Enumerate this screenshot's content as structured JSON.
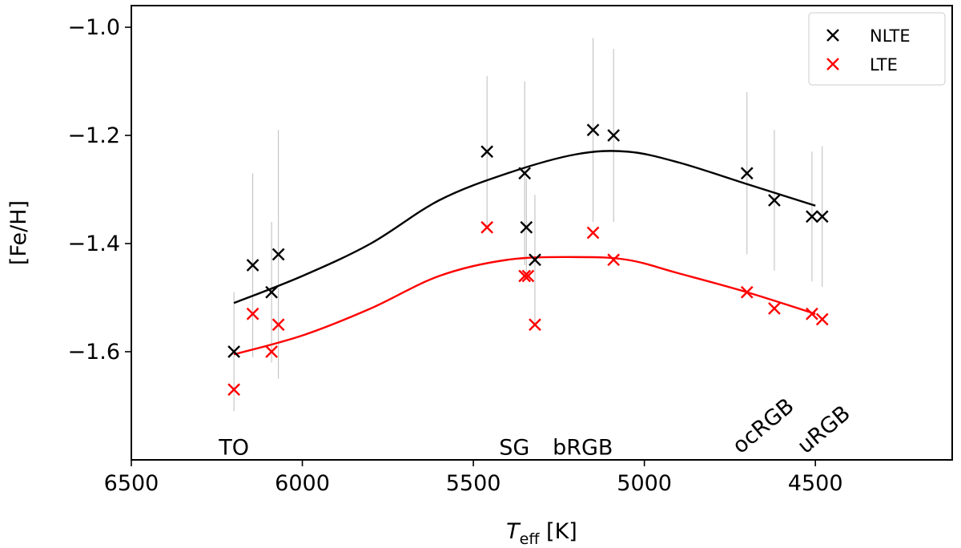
{
  "chart_data": {
    "type": "scatter",
    "xlabel_main": "T",
    "xlabel_sub": "eff",
    "xlabel_unit": " [K]",
    "ylabel": "[Fe/H]",
    "xlim": [
      6500,
      4100
    ],
    "ylim": [
      -1.8,
      -0.96
    ],
    "x_ticks": [
      6500,
      6000,
      5500,
      5000,
      4500
    ],
    "x_tick_labels": [
      "6500",
      "6000",
      "5500",
      "5000",
      "4500"
    ],
    "y_ticks": [
      -1.0,
      -1.2,
      -1.4,
      -1.6
    ],
    "y_tick_labels": [
      "−1.0",
      "−1.2",
      "−1.4",
      "−1.6"
    ],
    "legend_position": "top-right",
    "colors": {
      "nlte": "#000000",
      "lte": "#ff0000",
      "errorbar": "#bbbbbb",
      "frame": "#000000"
    },
    "series": [
      {
        "name": "NLTE",
        "key": "nlte",
        "marker": "x",
        "points": [
          {
            "x": 6200,
            "y": -1.6,
            "err": 0.11
          },
          {
            "x": 6145,
            "y": -1.44,
            "err": 0.17
          },
          {
            "x": 6090,
            "y": -1.49,
            "err": 0.13
          },
          {
            "x": 6070,
            "y": -1.42,
            "err": 0.23
          },
          {
            "x": 5460,
            "y": -1.23,
            "err": 0.14
          },
          {
            "x": 5350,
            "y": -1.27,
            "err": 0.17
          },
          {
            "x": 5345,
            "y": -1.37,
            "err": 0.09
          },
          {
            "x": 5320,
            "y": -1.43,
            "err": 0.12
          },
          {
            "x": 5150,
            "y": -1.19,
            "err": 0.17
          },
          {
            "x": 5090,
            "y": -1.2,
            "err": 0.16
          },
          {
            "x": 4700,
            "y": -1.27,
            "err": 0.15
          },
          {
            "x": 4620,
            "y": -1.32,
            "err": 0.13
          },
          {
            "x": 4510,
            "y": -1.35,
            "err": 0.12
          },
          {
            "x": 4480,
            "y": -1.35,
            "err": 0.13
          }
        ],
        "fit": {
          "x": [
            6200,
            6000,
            5800,
            5600,
            5400,
            5200,
            5050,
            4900,
            4700,
            4500
          ],
          "y": [
            -1.51,
            -1.46,
            -1.4,
            -1.32,
            -1.27,
            -1.235,
            -1.23,
            -1.25,
            -1.29,
            -1.33
          ]
        }
      },
      {
        "name": "LTE",
        "key": "lte",
        "marker": "x",
        "points": [
          {
            "x": 6200,
            "y": -1.67
          },
          {
            "x": 6145,
            "y": -1.53
          },
          {
            "x": 6090,
            "y": -1.6
          },
          {
            "x": 6070,
            "y": -1.55
          },
          {
            "x": 5460,
            "y": -1.37
          },
          {
            "x": 5350,
            "y": -1.46
          },
          {
            "x": 5340,
            "y": -1.46
          },
          {
            "x": 5320,
            "y": -1.55
          },
          {
            "x": 5150,
            "y": -1.38
          },
          {
            "x": 5090,
            "y": -1.43
          },
          {
            "x": 4700,
            "y": -1.49
          },
          {
            "x": 4620,
            "y": -1.52
          },
          {
            "x": 4510,
            "y": -1.53
          },
          {
            "x": 4480,
            "y": -1.54
          }
        ],
        "fit": {
          "x": [
            6200,
            6000,
            5800,
            5600,
            5400,
            5200,
            5050,
            4900,
            4700,
            4500
          ],
          "y": [
            -1.605,
            -1.57,
            -1.52,
            -1.46,
            -1.43,
            -1.425,
            -1.43,
            -1.455,
            -1.49,
            -1.53
          ]
        }
      }
    ],
    "annotations": [
      {
        "text": "TO",
        "x": 6200,
        "y": -1.79,
        "rotate": 0
      },
      {
        "text": "SG",
        "x": 5380,
        "y": -1.79,
        "rotate": 0
      },
      {
        "text": "bRGB",
        "x": 5180,
        "y": -1.79,
        "rotate": 0
      },
      {
        "text": "ocRGB",
        "x": 4710,
        "y": -1.79,
        "rotate": -40
      },
      {
        "text": "uRGB",
        "x": 4520,
        "y": -1.79,
        "rotate": -40
      }
    ]
  }
}
